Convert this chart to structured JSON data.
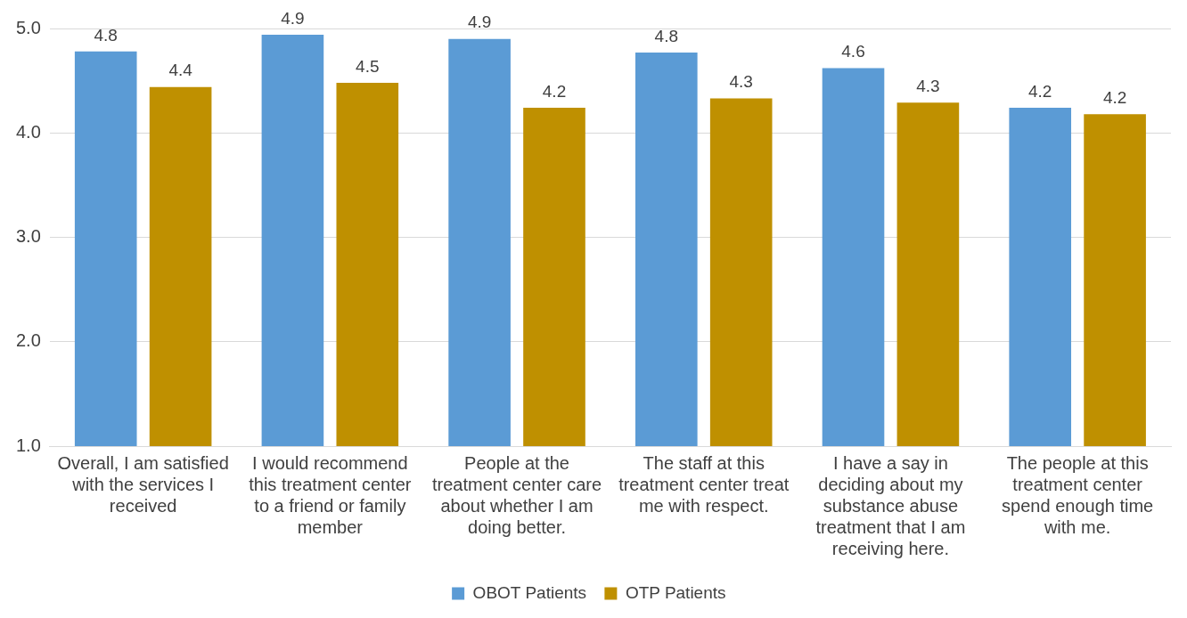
{
  "chart_data": {
    "type": "bar",
    "categories": [
      "Overall, I am satisfied with the services I received",
      "I would recommend this treatment center to a friend or family member",
      "People at the treatment center care about whether I am doing better.",
      "The staff at this treatment center treat me with respect.",
      "I have a say in deciding about my substance abuse treatment that I am receiving here.",
      "The people at this treatment center spend enough time with me."
    ],
    "series": [
      {
        "name": "OBOT Patients",
        "color": "#5b9bd5",
        "values": [
          4.78,
          4.94,
          4.9,
          4.77,
          4.62,
          4.24
        ],
        "value_labels": [
          "4.8",
          "4.9",
          "4.9",
          "4.8",
          "4.6",
          "4.2"
        ]
      },
      {
        "name": "OTP Patients",
        "color": "#bf9000",
        "values": [
          4.44,
          4.48,
          4.24,
          4.33,
          4.29,
          4.18
        ],
        "value_labels": [
          "4.4",
          "4.5",
          "4.2",
          "4.3",
          "4.3",
          "4.2"
        ]
      }
    ],
    "ylim": [
      1,
      5
    ],
    "yticks": [
      {
        "value": 1,
        "label": "1.0"
      },
      {
        "value": 2,
        "label": "2.0"
      },
      {
        "value": 3,
        "label": "3.0"
      },
      {
        "value": 4,
        "label": "4.0"
      },
      {
        "value": 5,
        "label": "5.0"
      }
    ],
    "grid": "y",
    "legend": "bottom"
  }
}
